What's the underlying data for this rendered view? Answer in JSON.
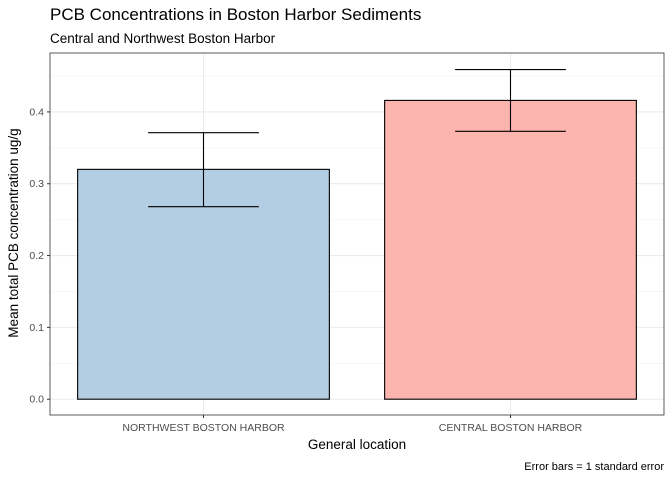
{
  "chart_data": {
    "type": "bar",
    "title": "PCB Concentrations in Boston Harbor Sediments",
    "subtitle": "Central and Northwest Boston Harbor",
    "xlabel": "General location",
    "ylabel": "Mean total PCB concentration ug/g",
    "caption": "Error bars = 1 standard error",
    "categories": [
      "NORTHWEST BOSTON HARBOR",
      "CENTRAL BOSTON HARBOR"
    ],
    "values": [
      0.32,
      0.416
    ],
    "error_low": [
      0.268,
      0.373
    ],
    "error_high": [
      0.371,
      0.459
    ],
    "bar_colors": [
      "#b3cde3",
      "#fbb4ae"
    ],
    "yticks": [
      0.0,
      0.1,
      0.2,
      0.3,
      0.4
    ],
    "ytick_labels": [
      "0.0",
      "0.1",
      "0.2",
      "0.3",
      "0.4"
    ],
    "ylim": [
      -0.022,
      0.482
    ],
    "grid": true,
    "legend": "none"
  }
}
